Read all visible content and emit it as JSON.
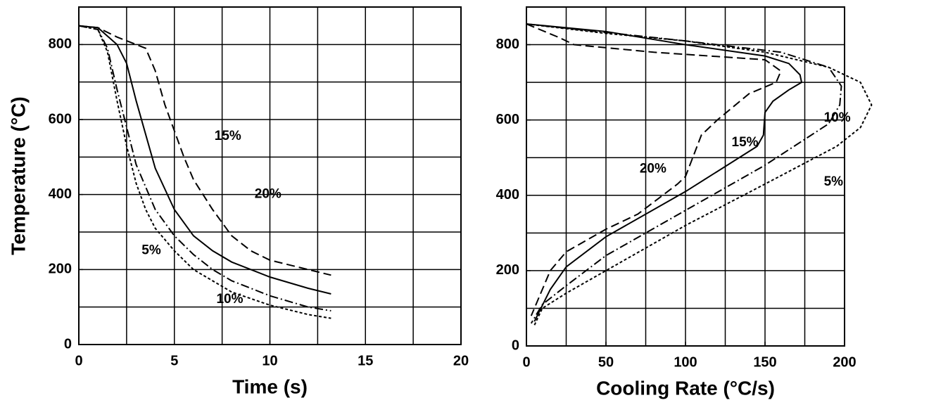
{
  "chart_data": [
    {
      "type": "line",
      "xlabel": "Time (s)",
      "ylabel": "Temperature (°C)",
      "xlim": [
        0,
        20
      ],
      "ylim": [
        0,
        900
      ],
      "xticks": [
        0,
        5,
        10,
        15,
        20
      ],
      "yticks": [
        0,
        200,
        400,
        600,
        800
      ],
      "xgrid": [
        2.5,
        5,
        7.5,
        10,
        12.5,
        15,
        17.5
      ],
      "ygrid": [
        100,
        200,
        300,
        400,
        500,
        600,
        700,
        800
      ],
      "series": [
        {
          "name": "5%",
          "color": "#000000",
          "linestyle": "dotted",
          "x": [
            0,
            1,
            1.5,
            2,
            2.5,
            3,
            3.5,
            4,
            5,
            6,
            7,
            8,
            10,
            12,
            13.2
          ],
          "values": [
            850,
            840,
            780,
            650,
            530,
            430,
            360,
            310,
            250,
            200,
            170,
            140,
            105,
            80,
            70
          ]
        },
        {
          "name": "10%",
          "color": "#000000",
          "linestyle": "dashdot",
          "x": [
            0,
            1,
            1.5,
            2,
            2.5,
            3,
            4,
            5,
            6,
            7,
            8,
            10,
            12,
            13.2
          ],
          "values": [
            850,
            840,
            790,
            680,
            580,
            480,
            360,
            290,
            240,
            200,
            170,
            130,
            100,
            90
          ]
        },
        {
          "name": "15%",
          "color": "#000000",
          "linestyle": "solid",
          "x": [
            0,
            1,
            2,
            2.5,
            3,
            3.5,
            4,
            5,
            6,
            7,
            8,
            10,
            12,
            13.2
          ],
          "values": [
            850,
            845,
            800,
            750,
            650,
            560,
            470,
            360,
            290,
            250,
            220,
            180,
            150,
            135
          ]
        },
        {
          "name": "20%",
          "color": "#000000",
          "linestyle": "dashed",
          "x": [
            0,
            1,
            2,
            3,
            3.5,
            4,
            4.5,
            5,
            5.5,
            6,
            7,
            8,
            9,
            10,
            12,
            13.2
          ],
          "values": [
            850,
            845,
            820,
            800,
            790,
            730,
            640,
            570,
            500,
            440,
            360,
            290,
            250,
            225,
            200,
            185
          ]
        }
      ]
    },
    {
      "type": "line",
      "xlabel": "Cooling Rate (°C/s)",
      "xlim": [
        0,
        200
      ],
      "ylim": [
        0,
        900
      ],
      "xticks": [
        0,
        50,
        100,
        150,
        200
      ],
      "yticks": [
        0,
        200,
        400,
        600,
        800
      ],
      "xgrid": [
        25,
        50,
        75,
        100,
        125,
        150,
        175
      ],
      "ygrid": [
        100,
        200,
        300,
        400,
        500,
        600,
        700,
        800
      ],
      "series": [
        {
          "name": "5%",
          "color": "#000000",
          "linestyle": "dotted",
          "x": [
            0,
            50,
            100,
            150,
            190,
            210,
            217,
            210,
            195,
            150,
            100,
            50,
            25,
            10,
            5
          ],
          "values": [
            855,
            830,
            810,
            780,
            740,
            700,
            640,
            580,
            530,
            430,
            320,
            200,
            140,
            100,
            55
          ]
        },
        {
          "name": "10%",
          "color": "#000000",
          "linestyle": "dashdot",
          "x": [
            0,
            100,
            160,
            190,
            198,
            197,
            190,
            150,
            100,
            50,
            25,
            10,
            3
          ],
          "values": [
            855,
            810,
            780,
            740,
            690,
            640,
            590,
            480,
            360,
            240,
            160,
            110,
            60
          ]
        },
        {
          "name": "15%",
          "color": "#000000",
          "linestyle": "solid",
          "x": [
            0,
            50,
            100,
            150,
            165,
            172,
            173,
            165,
            155,
            150,
            149,
            145,
            100,
            50,
            25,
            15,
            5
          ],
          "values": [
            855,
            835,
            800,
            770,
            750,
            720,
            700,
            680,
            650,
            620,
            560,
            530,
            410,
            290,
            210,
            150,
            65
          ]
        },
        {
          "name": "20%",
          "color": "#000000",
          "linestyle": "dashed",
          "x": [
            0,
            20,
            30,
            80,
            150,
            160,
            157,
            140,
            120,
            110,
            100,
            95,
            70,
            50,
            25,
            15,
            3
          ],
          "values": [
            855,
            820,
            800,
            780,
            760,
            730,
            700,
            670,
            600,
            560,
            450,
            430,
            350,
            310,
            250,
            200,
            80
          ]
        }
      ]
    }
  ]
}
